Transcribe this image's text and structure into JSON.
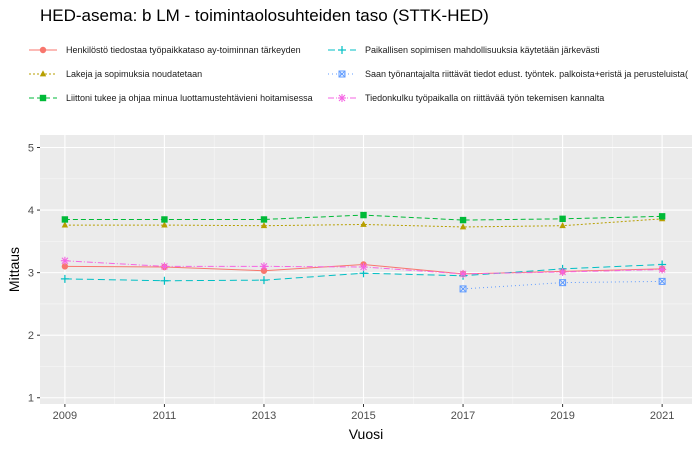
{
  "title": "HED-asema: b LM  - toimintaolosuhteiden taso (STTK-HED)",
  "chart_data": {
    "type": "line",
    "title": "HED-asema: b LM  - toimintaolosuhteiden taso (STTK-HED)",
    "xlabel": "Vuosi",
    "ylabel": "Mittaus",
    "x": [
      2009,
      2011,
      2013,
      2015,
      2017,
      2019,
      2021
    ],
    "xticks": [
      "2009",
      "2011",
      "2013",
      "2015",
      "2017",
      "2019",
      "2021"
    ],
    "yticks": [
      "1",
      "2",
      "3",
      "4",
      "5"
    ],
    "xlim": [
      2008.5,
      2021.6
    ],
    "ylim": [
      0.9,
      5.2
    ],
    "grid": true,
    "legend_position": "top",
    "series": [
      {
        "name": "Henkilöstö tiedostaa työpaikkataso ay-toiminnan tärkeyden",
        "color": "#F8766D",
        "dash": "",
        "marker": "circle",
        "values": [
          3.1,
          3.09,
          3.03,
          3.13,
          2.98,
          3.02,
          3.06
        ]
      },
      {
        "name": "Lakeja ja sopimuksia noudatetaan",
        "color": "#B79F00",
        "dash": "2,2",
        "marker": "triangle",
        "values": [
          3.76,
          3.76,
          3.75,
          3.77,
          3.73,
          3.75,
          3.86
        ]
      },
      {
        "name": "Liittoni tukee ja ohjaa minua luottamustehtävieni hoitamisessa",
        "color": "#00BA38",
        "dash": "5,3",
        "marker": "square",
        "values": [
          3.85,
          3.85,
          3.85,
          3.92,
          3.84,
          3.86,
          3.9
        ]
      },
      {
        "name": "Paikallisen sopimisen mahdollisuuksia käytetään järkevästi",
        "color": "#00BFC4",
        "dash": "7,4",
        "marker": "plus",
        "values": [
          2.9,
          2.87,
          2.88,
          2.99,
          2.95,
          3.06,
          3.13
        ]
      },
      {
        "name": "Saan työnantajalta riittävät tiedot edust. työntek. palkoista+eristä ja perusteluista(",
        "color": "#619CFF",
        "dash": "1,3",
        "marker": "boxx",
        "values": [
          null,
          null,
          null,
          null,
          2.74,
          2.84,
          2.86
        ]
      },
      {
        "name": "Tiedonkulku työpaikalla on riittävää työn tekemisen kannalta",
        "color": "#F564E3",
        "dash": "6,2,1,2",
        "marker": "asterisk",
        "values": [
          3.19,
          3.1,
          3.1,
          3.09,
          2.98,
          3.01,
          3.05
        ]
      }
    ]
  }
}
